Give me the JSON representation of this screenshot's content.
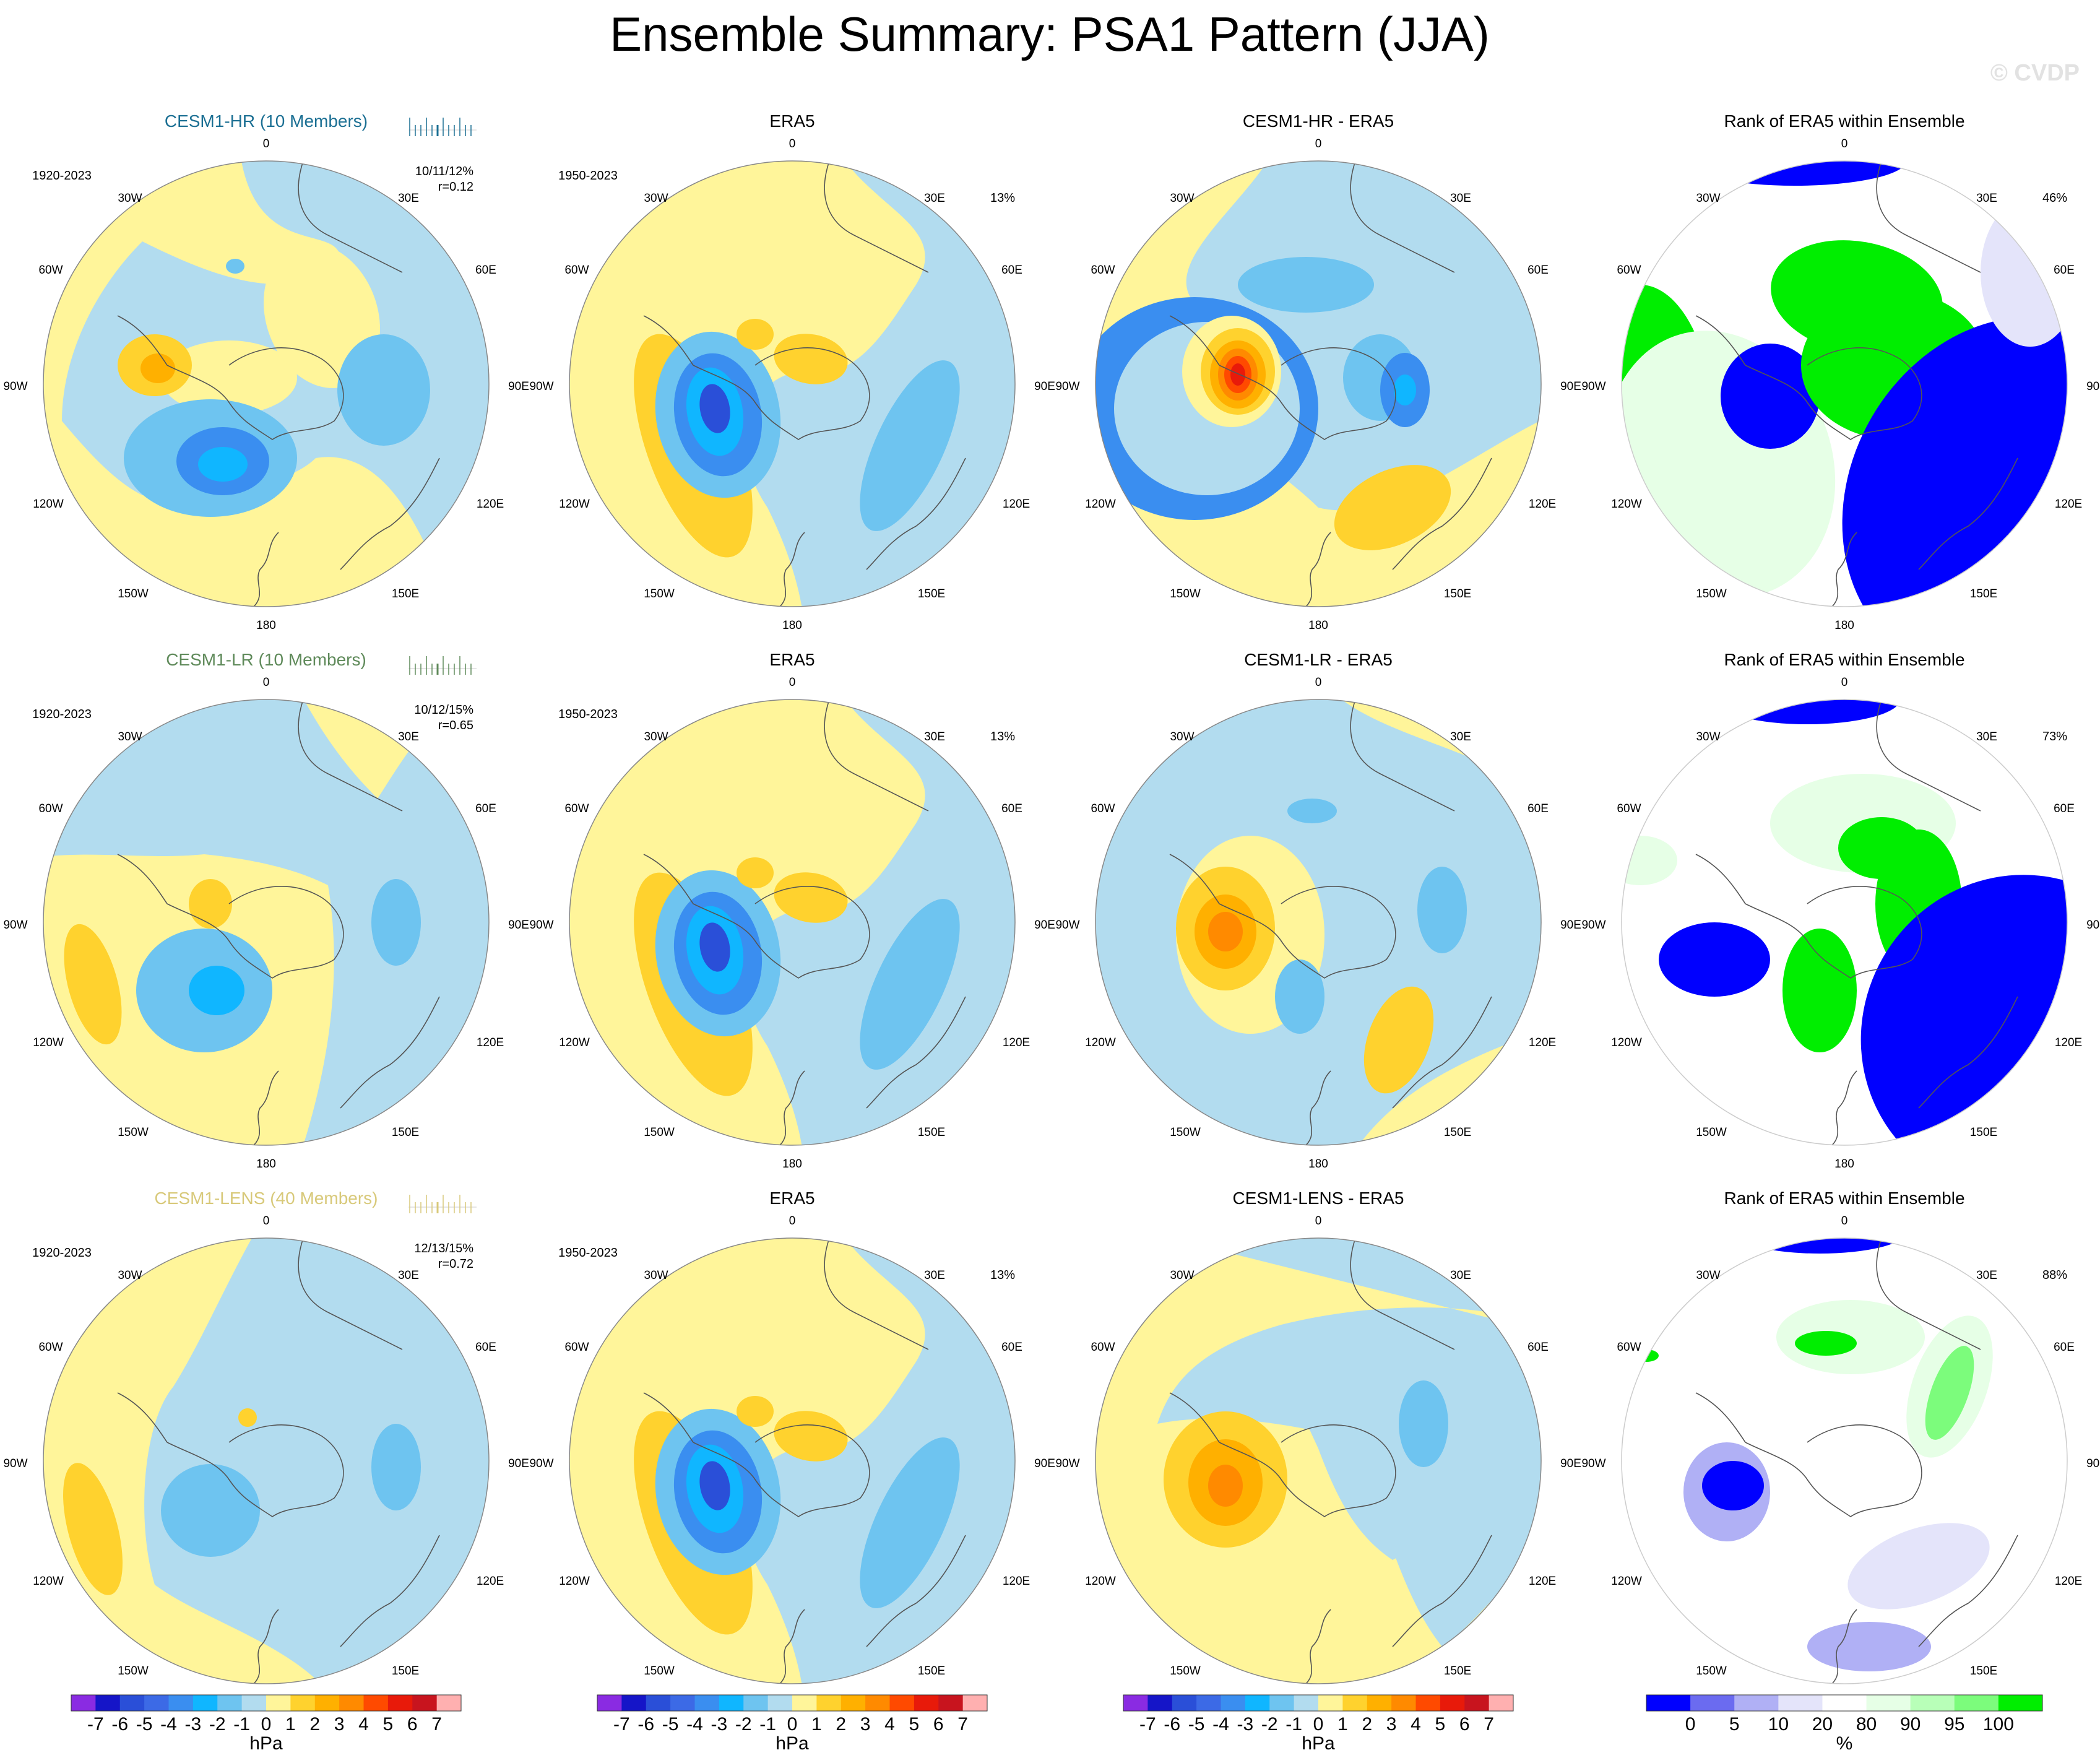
{
  "title": "Ensemble Summary: PSA1 Pattern (JJA)",
  "watermark": "© CVDP",
  "lon_labels": {
    "top": "0",
    "bottom": "180",
    "upper_left": "30W",
    "upper_right": "30E",
    "mid_upper_left": "60W",
    "mid_upper_right": "60E",
    "left": "90W",
    "right": "90E",
    "mid_lower_left": "120W",
    "mid_lower_right": "120E",
    "lower_left": "150W",
    "lower_right": "150E"
  },
  "rows": [
    {
      "model": {
        "title": "CESM1-HR (10 Members)",
        "period": "1920-2023",
        "stat_text": "10/11/12%",
        "corr_text": "r=0.12",
        "title_color": "#1b6f93"
      },
      "era5": {
        "title": "ERA5",
        "period": "1950-2023",
        "pct": "13%"
      },
      "diff": {
        "title": "CESM1-HR - ERA5"
      },
      "rank": {
        "title": "Rank of ERA5 within Ensemble",
        "pct": "46%"
      }
    },
    {
      "model": {
        "title": "CESM1-LR (10 Members)",
        "period": "1920-2023",
        "stat_text": "10/12/15%",
        "corr_text": "r=0.65",
        "title_color": "#5f8a5a"
      },
      "era5": {
        "title": "ERA5",
        "period": "1950-2023",
        "pct": "13%"
      },
      "diff": {
        "title": "CESM1-LR - ERA5"
      },
      "rank": {
        "title": "Rank of ERA5 within Ensemble",
        "pct": "73%"
      }
    },
    {
      "model": {
        "title": "CESM1-LENS (40 Members)",
        "period": "1920-2023",
        "stat_text": "12/13/15%",
        "corr_text": "r=0.72",
        "title_color": "#d8c97a"
      },
      "era5": {
        "title": "ERA5",
        "period": "1950-2023",
        "pct": "13%"
      },
      "diff": {
        "title": "CESM1-LENS - ERA5"
      },
      "rank": {
        "title": "Rank of ERA5 within Ensemble",
        "pct": "88%"
      }
    }
  ],
  "colorbars": {
    "hpa": {
      "unit": "hPa",
      "ticks": [
        "-7",
        "-6",
        "-5",
        "-4",
        "-3",
        "-2",
        "-1",
        "0",
        "1",
        "2",
        "3",
        "4",
        "5",
        "6",
        "7"
      ],
      "colors": [
        "#8a2be2",
        "#1515c8",
        "#2a4fd8",
        "#3c6ae6",
        "#3a8ef0",
        "#10b6ff",
        "#6ec4f0",
        "#b2dcef",
        "#fff59a",
        "#ffd22e",
        "#ffb000",
        "#ff8a00",
        "#ff4a00",
        "#e81a0a",
        "#c8141e",
        "#ffb0b0"
      ]
    },
    "pct": {
      "unit": "%",
      "ticks": [
        "0",
        "5",
        "10",
        "20",
        "80",
        "90",
        "95",
        "100"
      ],
      "colors": [
        "#0000ff",
        "#6b6bf0",
        "#b0b0f5",
        "#e4e4fa",
        "#ffffff",
        "#e6ffe6",
        "#b8ffb8",
        "#7cfc7c",
        "#00ee00"
      ]
    }
  },
  "chart_data": [
    {
      "type": "heatmap",
      "panel": "CESM1-HR (10 Members)",
      "units": "hPa",
      "features": [
        {
          "name": "low",
          "value": -5
        },
        {
          "name": "low",
          "value": -3
        },
        {
          "name": "high",
          "value": 3
        }
      ]
    },
    {
      "type": "heatmap",
      "panel": "ERA5",
      "units": "hPa",
      "features": [
        {
          "name": "low",
          "value": -6
        },
        {
          "name": "high",
          "value": 2
        },
        {
          "name": "low",
          "value": -2
        }
      ]
    },
    {
      "type": "heatmap",
      "panel": "CESM1-HR - ERA5",
      "units": "hPa",
      "features": [
        {
          "name": "high",
          "value": 6
        },
        {
          "name": "low",
          "value": -2
        },
        {
          "name": "high",
          "value": 2
        }
      ]
    },
    {
      "type": "heatmap",
      "panel": "Rank of ERA5 within Ensemble",
      "units": "%",
      "ranked_percent": 46
    },
    {
      "type": "heatmap",
      "panel": "CESM1-LR (10 Members)",
      "units": "hPa",
      "features": [
        {
          "name": "low",
          "value": -4
        },
        {
          "name": "high",
          "value": 2
        },
        {
          "name": "low",
          "value": -2
        }
      ]
    },
    {
      "type": "heatmap",
      "panel": "ERA5",
      "units": "hPa",
      "features": [
        {
          "name": "low",
          "value": -6
        },
        {
          "name": "high",
          "value": 2
        },
        {
          "name": "low",
          "value": -2
        }
      ]
    },
    {
      "type": "heatmap",
      "panel": "CESM1-LR - ERA5",
      "units": "hPa",
      "features": [
        {
          "name": "high",
          "value": 4
        },
        {
          "name": "high",
          "value": 2
        },
        {
          "name": "low",
          "value": -2
        }
      ]
    },
    {
      "type": "heatmap",
      "panel": "Rank of ERA5 within Ensemble",
      "units": "%",
      "ranked_percent": 73
    },
    {
      "type": "heatmap",
      "panel": "CESM1-LENS (40 Members)",
      "units": "hPa",
      "features": [
        {
          "name": "low",
          "value": -2
        },
        {
          "name": "high",
          "value": 2
        },
        {
          "name": "low",
          "value": -2
        }
      ]
    },
    {
      "type": "heatmap",
      "panel": "ERA5",
      "units": "hPa",
      "features": [
        {
          "name": "low",
          "value": -6
        },
        {
          "name": "high",
          "value": 2
        },
        {
          "name": "low",
          "value": -2
        }
      ]
    },
    {
      "type": "heatmap",
      "panel": "CESM1-LENS - ERA5",
      "units": "hPa",
      "features": [
        {
          "name": "high",
          "value": 4
        },
        {
          "name": "low",
          "value": -2
        }
      ]
    },
    {
      "type": "heatmap",
      "panel": "Rank of ERA5 within Ensemble",
      "units": "%",
      "ranked_percent": 88
    }
  ]
}
